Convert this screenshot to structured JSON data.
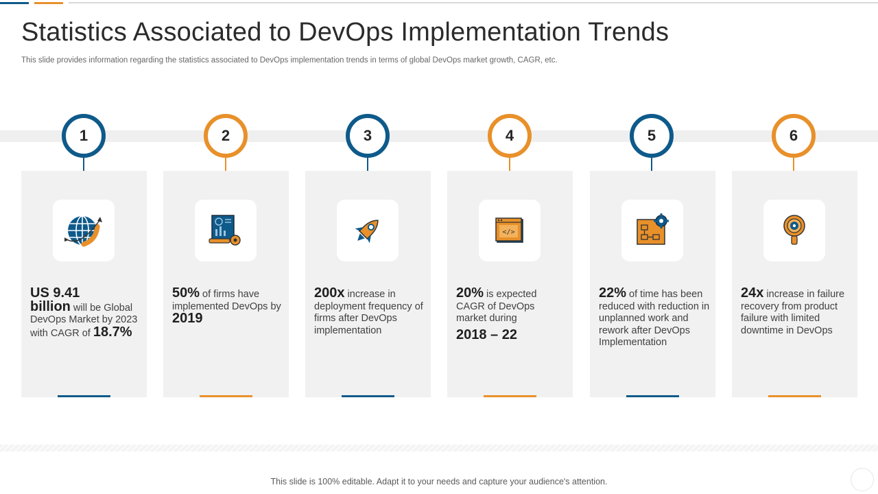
{
  "slide": {
    "title": "Statistics Associated to DevOps Implementation Trends",
    "subtitle": "This slide provides information regarding the statistics associated to DevOps implementation trends in terms of global DevOps market growth, CAGR, etc.",
    "footer": "This slide is 100% editable. Adapt it to your needs and capture your audience's attention."
  },
  "colors": {
    "blue": "#0e5a8a",
    "orange": "#e8902a",
    "card": "#f1f1f1"
  },
  "stats": [
    {
      "number": "1",
      "icon": "globe-icon",
      "accent": "blue",
      "p1": "US 9.41",
      "p2": "billion",
      "p3": " will be Global DevOps Market by 2023 with CAGR of ",
      "p4": "18.7%"
    },
    {
      "number": "2",
      "icon": "analytics-report-icon",
      "accent": "orange",
      "p1": "50%",
      "p2": " of firms have implemented DevOps by ",
      "p3": "2019"
    },
    {
      "number": "3",
      "icon": "rocket-icon",
      "accent": "blue",
      "p1": "200x",
      "p2": " increase in deployment frequency of firms after DevOps implementation"
    },
    {
      "number": "4",
      "icon": "code-window-icon",
      "accent": "orange",
      "p1": "20%",
      "p2": " is expected CAGR of DevOps market during",
      "p3": "2018 – 22"
    },
    {
      "number": "5",
      "icon": "blueprint-gear-icon",
      "accent": "blue",
      "p1": "22%",
      "p2": " of time has been reduced with reduction in unplanned work and rework after DevOps Implementation"
    },
    {
      "number": "6",
      "icon": "magnifier-gear-icon",
      "accent": "orange",
      "p1": "24x",
      "p2": " increase in failure recovery from product failure with limited downtime in DevOps"
    }
  ]
}
